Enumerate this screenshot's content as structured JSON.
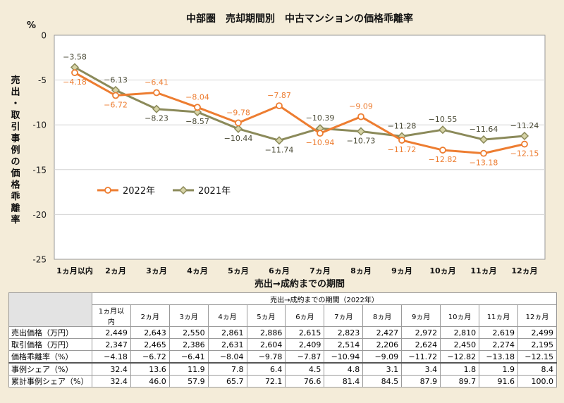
{
  "chart_data": {
    "type": "line",
    "title": "中部圏　売却期間別　中古マンションの価格乖離率",
    "unit": "%",
    "ylabel": "売出・取引事例の価格乖離率",
    "xlabel": "売出→成約までの期間",
    "ylim": [
      -25,
      0
    ],
    "yticks": [
      "0",
      "-5",
      "-10",
      "-15",
      "-20",
      "-25"
    ],
    "categories": [
      "1ヵ月以内",
      "2ヵ月",
      "3ヵ月",
      "4ヵ月",
      "5ヵ月",
      "6ヵ月",
      "7ヵ月",
      "8ヵ月",
      "9ヵ月",
      "10ヵ月",
      "11ヵ月",
      "12ヵ月"
    ],
    "series": [
      {
        "name": "2022年",
        "color": "#ed7d31",
        "marker": "circle",
        "values": [
          -4.18,
          -6.72,
          -6.41,
          -8.04,
          -9.78,
          -7.87,
          -10.94,
          -9.09,
          -11.72,
          -12.82,
          -13.18,
          -12.15
        ],
        "labels": [
          "-4.18",
          "-6.72",
          "-6.41",
          "-8.04",
          "-9.78",
          "-7.87",
          "-10.94",
          "-9.09",
          "-11.72",
          "-12.82",
          "-13.18",
          "-12.15"
        ]
      },
      {
        "name": "2021年",
        "color": "#8b8a5a",
        "marker": "diamond",
        "values": [
          -3.58,
          -6.13,
          -8.23,
          -8.57,
          -10.44,
          -11.74,
          -10.39,
          -10.73,
          -11.28,
          -10.55,
          -11.64,
          -11.24
        ],
        "labels": [
          "-3.58",
          "-6.13",
          "-8.23",
          "-8.57",
          "-10.44",
          "-11.74",
          "-10.39",
          "-10.73",
          "-11.28",
          "-10.55",
          "-11.64",
          "-11.24"
        ]
      }
    ]
  },
  "table": {
    "header": "売出→成約までの期間（2022年）",
    "columns": [
      "1ヵ月以内",
      "2ヵ月",
      "3ヵ月",
      "4ヵ月",
      "5ヵ月",
      "6ヵ月",
      "7ヵ月",
      "8ヵ月",
      "9ヵ月",
      "10ヵ月",
      "11ヵ月",
      "12ヵ月"
    ],
    "rows": [
      {
        "label": "売出価格（万円）",
        "values": [
          "2,449",
          "2,643",
          "2,550",
          "2,861",
          "2,886",
          "2,615",
          "2,823",
          "2,427",
          "2,972",
          "2,810",
          "2,619",
          "2,499"
        ]
      },
      {
        "label": "取引価格（万円）",
        "values": [
          "2,347",
          "2,465",
          "2,386",
          "2,631",
          "2,604",
          "2,409",
          "2,514",
          "2,206",
          "2,624",
          "2,450",
          "2,274",
          "2,195"
        ]
      },
      {
        "label": "価格乖離率（%）",
        "values": [
          "−4.18",
          "−6.72",
          "−6.41",
          "−8.04",
          "−9.78",
          "−7.87",
          "−10.94",
          "−9.09",
          "−11.72",
          "−12.82",
          "−13.18",
          "−12.15"
        ]
      },
      {
        "label": "事例シェア（%）",
        "values": [
          "32.4",
          "13.6",
          "11.9",
          "7.8",
          "6.4",
          "4.5",
          "4.8",
          "3.1",
          "3.4",
          "1.8",
          "1.9",
          "8.4"
        ]
      },
      {
        "label": "累計事例シェア（%）",
        "values": [
          "32.4",
          "46.0",
          "57.9",
          "65.7",
          "72.1",
          "76.6",
          "81.4",
          "84.5",
          "87.9",
          "89.7",
          "91.6",
          "100.0"
        ]
      }
    ]
  }
}
